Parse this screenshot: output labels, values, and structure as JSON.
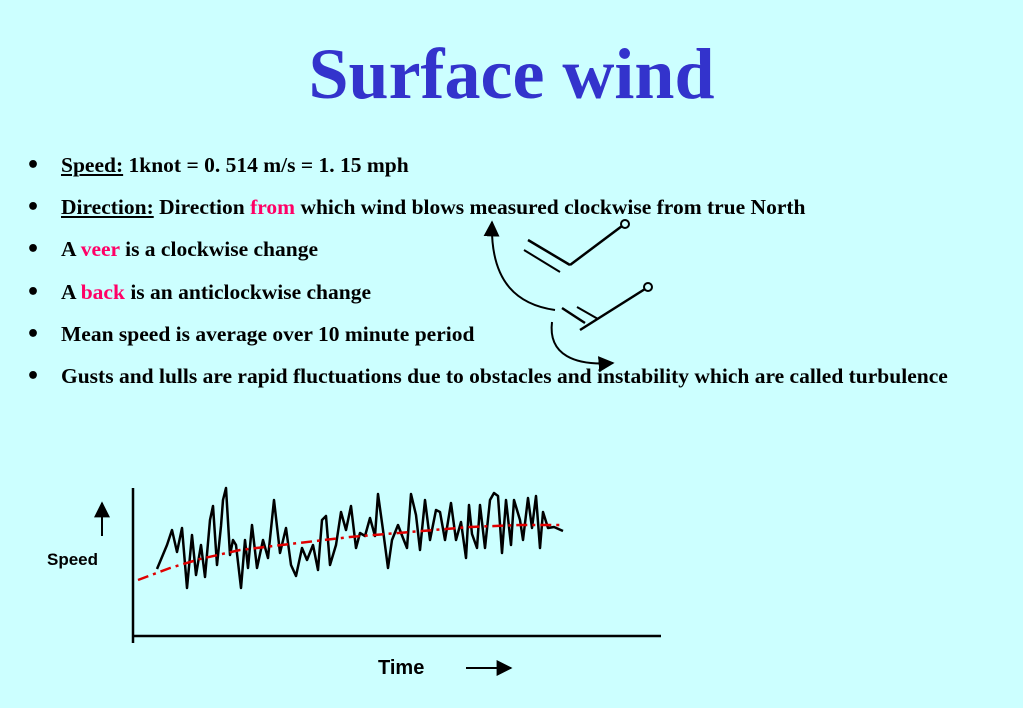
{
  "slide": {
    "title": "Surface wind",
    "bullets": [
      {
        "label": "Speed:",
        "text": "1knot = 0. 514 m/s = 1. 15 mph"
      },
      {
        "label": "Direction:",
        "pre": "Direction",
        "highlight": "from",
        "post": "which wind blows measured clockwise from true North"
      },
      {
        "pre": "A",
        "highlight": "veer",
        "post": "is a clockwise change"
      },
      {
        "pre": "A",
        "highlight": "back",
        "post": "is an anticlockwise change"
      },
      {
        "text": "Mean speed is average over 10 minute period"
      },
      {
        "text": "Gusts and lulls are rapid fluctuations due to obstacles and instability which are called turbulence"
      }
    ],
    "highlight_color": "#ff0066",
    "title_color": "#3333cc",
    "background_color": "#ccffff"
  },
  "chart_data": {
    "type": "line",
    "xlabel": "Time",
    "ylabel": "Speed",
    "series": [
      {
        "style": "gusty speed trace",
        "color": "#000000"
      },
      {
        "style": "mean speed trend (dashed)",
        "color": "#e00000"
      }
    ]
  },
  "icons": [
    "wind-barb-icon",
    "curved-arrow-icon",
    "up-arrow-icon",
    "right-arrow-icon"
  ]
}
